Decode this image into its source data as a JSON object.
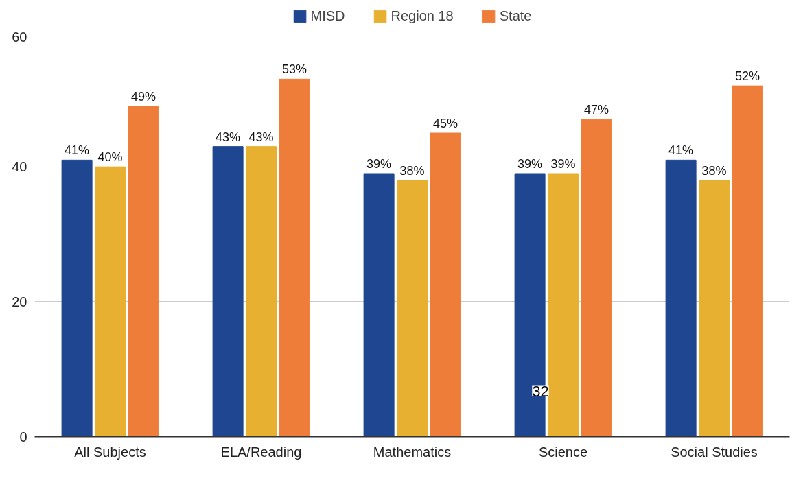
{
  "chart_data": {
    "type": "bar",
    "categories": [
      "All Subjects",
      "ELA/Reading",
      "Mathematics",
      "Science",
      "Social Studies"
    ],
    "series": [
      {
        "name": "MISD",
        "color": "#1f4690",
        "values": [
          41,
          43,
          39,
          39,
          41
        ],
        "value_labels": [
          "41%",
          "43%",
          "39%",
          "39%",
          "41%"
        ]
      },
      {
        "name": "Region 18",
        "color": "#e8b030",
        "values": [
          40,
          43,
          38,
          39,
          38
        ],
        "value_labels": [
          "40%",
          "43%",
          "38%",
          "39%",
          "38%"
        ]
      },
      {
        "name": "State",
        "color": "#ee7d3a",
        "values": [
          49,
          53,
          45,
          47,
          52
        ],
        "value_labels": [
          "49%",
          "53%",
          "45%",
          "47%",
          "52%"
        ]
      }
    ],
    "ylim": [
      0,
      60
    ],
    "yticks": [
      0,
      20,
      40,
      60
    ],
    "grid": "y",
    "legend": "top",
    "annotations": [
      "32"
    ]
  }
}
